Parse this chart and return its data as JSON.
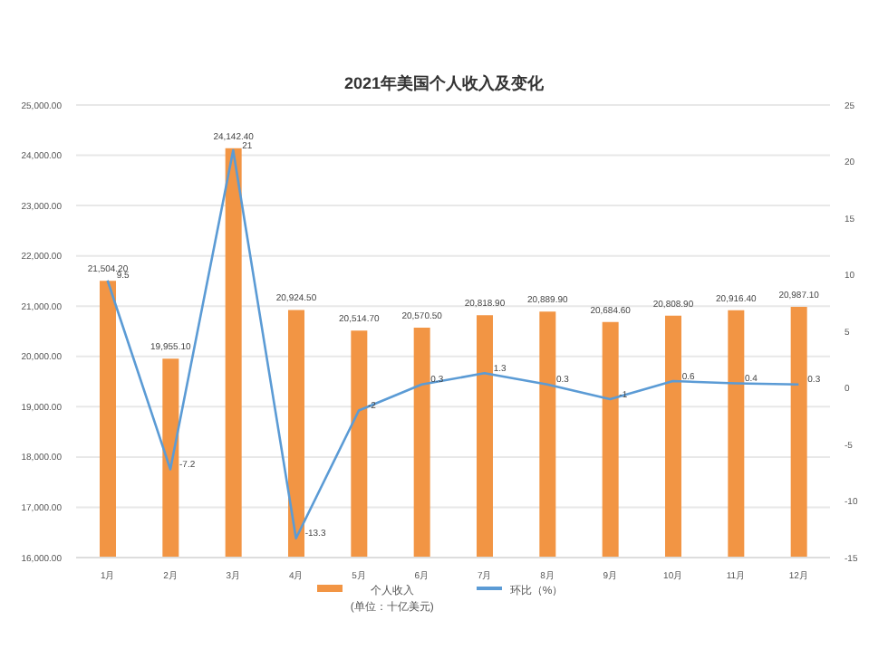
{
  "chart_data": {
    "type": "bar",
    "title": "2021年美国个人收入及变化",
    "categories": [
      "1月",
      "2月",
      "3月",
      "4月",
      "5月",
      "6月",
      "7月",
      "8月",
      "9月",
      "10月",
      "11月",
      "12月"
    ],
    "series": [
      {
        "name": "个人收入\n(单位：十亿美元)",
        "color": "#f29544",
        "values": [
          21504.2,
          19955.1,
          24142.4,
          20924.5,
          20514.7,
          20570.5,
          20818.9,
          20889.9,
          20684.6,
          20808.9,
          20916.4,
          20987.1
        ],
        "value_labels": [
          "21,504.20",
          "19,955.10",
          "24,142.40",
          "20,924.50",
          "20,514.70",
          "20,570.50",
          "20,818.90",
          "20,889.90",
          "20,684.60",
          "20,808.90",
          "20,916.40",
          "20,987.10"
        ]
      },
      {
        "name": "环比（%）",
        "type": "line",
        "axis": "y2",
        "color": "#5b9bd5",
        "values": [
          9.5,
          -7.2,
          21,
          -13.3,
          -2,
          0.3,
          1.3,
          0.3,
          -1,
          0.6,
          0.4,
          0.3
        ]
      }
    ],
    "ylim": [
      16000,
      25000
    ],
    "yticks": [
      {
        "value": 16000,
        "label": "16,000.00"
      },
      {
        "value": 17000,
        "label": "17,000.00"
      },
      {
        "value": 18000,
        "label": "18,000.00"
      },
      {
        "value": 19000,
        "label": "19,000.00"
      },
      {
        "value": 20000,
        "label": "20,000.00"
      },
      {
        "value": 21000,
        "label": "21,000.00"
      },
      {
        "value": 22000,
        "label": "22,000.00"
      },
      {
        "value": 23000,
        "label": "23,000.00"
      },
      {
        "value": 24000,
        "label": "24,000.00"
      },
      {
        "value": 25000,
        "label": "25,000.00"
      }
    ],
    "y2lim": [
      -15,
      25
    ],
    "y2ticks": [
      -15,
      -10,
      -5,
      0,
      5,
      10,
      15,
      20,
      25
    ],
    "data_labels": true,
    "grid": "y",
    "legend": "bottom",
    "marker": "none",
    "line_style": "solid"
  }
}
